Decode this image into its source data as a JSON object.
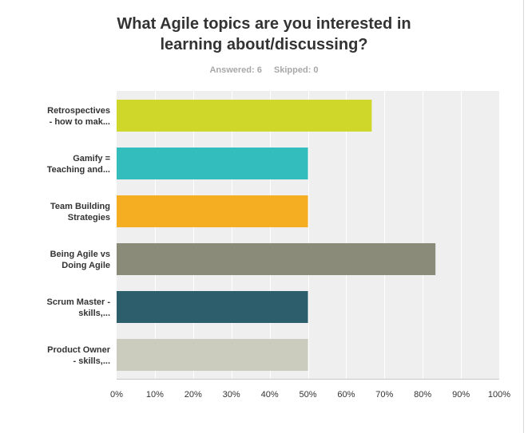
{
  "header": {
    "title_line1": "What Agile topics are you interested in",
    "title_line2": "learning about/discussing?",
    "answered": "Answered: 6",
    "skipped": "Skipped: 0"
  },
  "colors": {
    "plot_bg": "#efefef",
    "grid": "#ffffff",
    "axis": "#c8c8c8",
    "text": "#333333"
  },
  "chart_data": {
    "type": "bar",
    "orientation": "horizontal",
    "categories": [
      [
        "Retrospectives",
        "- how to mak..."
      ],
      [
        "Gamify =",
        "Teaching and..."
      ],
      [
        "Team Building",
        "Strategies"
      ],
      [
        "Being Agile vs",
        "Doing Agile"
      ],
      [
        "Scrum Master -",
        "skills,..."
      ],
      [
        "Product Owner",
        "- skills,..."
      ]
    ],
    "values": [
      66.67,
      50,
      50,
      83.33,
      50,
      50
    ],
    "bar_colors": [
      "#cfd72b",
      "#33bdbd",
      "#f5ad22",
      "#8a8b79",
      "#2c5f6b",
      "#ccccbe"
    ],
    "xlim": [
      0,
      100
    ],
    "x_ticks": [
      "0%",
      "10%",
      "20%",
      "30%",
      "40%",
      "50%",
      "60%",
      "70%",
      "80%",
      "90%",
      "100%"
    ],
    "grid": true
  }
}
